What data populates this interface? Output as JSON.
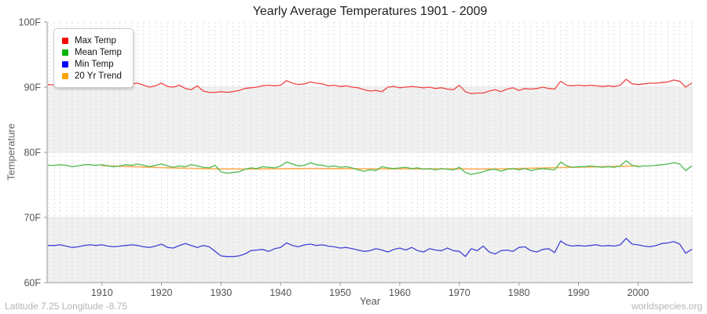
{
  "footer": {
    "left": "Latitude 7.25 Longitude -8.75",
    "right": "worldspecies.org"
  },
  "chart_data": {
    "type": "line",
    "title": "Yearly Average Temperatures 1901 - 2009",
    "xlabel": "Year",
    "ylabel": "Temperature",
    "xlim": [
      1901,
      2009
    ],
    "ylim": [
      60,
      100
    ],
    "y_unit": "F",
    "y_ticks": [
      100,
      90,
      80,
      70,
      60
    ],
    "x_ticks": [
      1910,
      1920,
      1930,
      1940,
      1950,
      1960,
      1970,
      1980,
      1990,
      2000
    ],
    "grid": "vertical-dashed-per-year, horizontal alternating 10F bands",
    "legend_position": "top-left",
    "band_colors": [
      "#f0f0f0",
      "#ffffff"
    ],
    "axis_color": "#999999",
    "tick_label_color": "#555555",
    "series": [
      {
        "name": "Max Temp",
        "color": "#ef4545",
        "swatch": "#ff0000",
        "start_year": 1901,
        "values": [
          90.4,
          90.3,
          90.5,
          90.6,
          90.1,
          90.0,
          90.3,
          90.5,
          90.4,
          90.5,
          90.3,
          90.1,
          90.3,
          90.2,
          90.5,
          90.6,
          90.3,
          90.0,
          90.2,
          90.6,
          90.1,
          90.0,
          90.3,
          89.8,
          89.6,
          90.2,
          89.4,
          89.2,
          89.2,
          89.3,
          89.2,
          89.3,
          89.5,
          89.8,
          89.9,
          90.0,
          90.2,
          90.3,
          90.2,
          90.3,
          91.0,
          90.6,
          90.4,
          90.5,
          90.8,
          90.6,
          90.5,
          90.2,
          90.3,
          90.1,
          90.2,
          90.0,
          89.9,
          89.6,
          89.4,
          89.5,
          89.3,
          90.0,
          90.1,
          89.9,
          90.0,
          90.1,
          90.0,
          89.9,
          90.0,
          89.8,
          89.9,
          89.7,
          89.6,
          90.3,
          89.3,
          89.0,
          89.1,
          89.1,
          89.4,
          89.6,
          89.3,
          89.7,
          89.9,
          89.5,
          89.8,
          89.7,
          89.8,
          90.0,
          89.8,
          89.7,
          90.9,
          90.3,
          90.2,
          90.3,
          90.2,
          90.3,
          90.2,
          90.1,
          90.2,
          90.1,
          90.3,
          91.2,
          90.5,
          90.4,
          90.5,
          90.6,
          90.6,
          90.7,
          90.8,
          91.1,
          90.9,
          90.0,
          90.6
        ]
      },
      {
        "name": "Mean Temp",
        "color": "#4dba4d",
        "swatch": "#00b200",
        "start_year": 1901,
        "values": [
          78.0,
          78.0,
          78.1,
          78.0,
          77.8,
          77.9,
          78.1,
          78.1,
          78.0,
          78.1,
          77.9,
          77.8,
          77.9,
          78.1,
          78.0,
          78.2,
          78.0,
          77.8,
          78.0,
          78.2,
          77.9,
          77.7,
          77.9,
          77.8,
          78.1,
          77.9,
          77.7,
          77.6,
          78.0,
          77.0,
          76.8,
          76.9,
          77.0,
          77.4,
          77.6,
          77.5,
          77.8,
          77.7,
          77.6,
          77.9,
          78.5,
          78.2,
          77.9,
          78.0,
          78.4,
          78.1,
          78.0,
          77.8,
          77.9,
          77.7,
          77.8,
          77.6,
          77.3,
          77.1,
          77.3,
          77.2,
          77.8,
          77.6,
          77.5,
          77.6,
          77.7,
          77.5,
          77.6,
          77.4,
          77.5,
          77.3,
          77.5,
          77.4,
          77.3,
          77.7,
          76.9,
          76.6,
          76.8,
          77.0,
          77.3,
          77.4,
          77.1,
          77.4,
          77.5,
          77.3,
          77.5,
          77.2,
          77.4,
          77.5,
          77.4,
          77.3,
          78.5,
          77.9,
          77.7,
          77.8,
          77.8,
          77.9,
          77.8,
          77.7,
          77.8,
          77.7,
          77.9,
          78.7,
          78.0,
          77.8,
          77.9,
          77.9,
          78.0,
          78.1,
          78.2,
          78.4,
          78.2,
          77.2,
          77.9
        ]
      },
      {
        "name": "Min Temp",
        "color": "#4343d6",
        "swatch": "#0000ff",
        "start_year": 1901,
        "values": [
          65.7,
          65.7,
          65.8,
          65.6,
          65.4,
          65.5,
          65.7,
          65.8,
          65.7,
          65.8,
          65.6,
          65.5,
          65.6,
          65.7,
          65.8,
          65.7,
          65.5,
          65.4,
          65.6,
          65.9,
          65.4,
          65.3,
          65.7,
          66.0,
          65.7,
          65.4,
          65.7,
          65.5,
          64.8,
          64.1,
          64.0,
          64.0,
          64.1,
          64.4,
          64.9,
          65.0,
          65.1,
          64.8,
          65.2,
          65.4,
          66.1,
          65.7,
          65.5,
          65.8,
          65.9,
          65.7,
          65.8,
          65.6,
          65.5,
          65.3,
          65.4,
          65.2,
          65.0,
          64.8,
          64.9,
          65.2,
          65.0,
          64.7,
          65.1,
          65.3,
          65.0,
          65.4,
          64.9,
          64.7,
          65.2,
          65.0,
          64.9,
          65.3,
          64.9,
          64.8,
          64.0,
          65.2,
          64.9,
          65.6,
          64.7,
          64.4,
          64.9,
          65.0,
          64.8,
          65.4,
          65.5,
          64.9,
          64.7,
          65.1,
          65.2,
          64.6,
          66.4,
          65.8,
          65.6,
          65.7,
          65.6,
          65.7,
          65.8,
          65.6,
          65.7,
          65.6,
          65.8,
          66.8,
          65.9,
          65.8,
          65.6,
          65.5,
          65.7,
          66.0,
          66.1,
          66.3,
          65.9,
          64.5,
          65.1
        ]
      },
      {
        "name": "20 Yr Trend",
        "color": "#ffad55",
        "swatch": "#ffa500",
        "start_year": 1910,
        "values": [
          77.95,
          77.92,
          77.89,
          77.86,
          77.83,
          77.8,
          77.77,
          77.74,
          77.71,
          77.68,
          77.65,
          77.62,
          77.59,
          77.57,
          77.55,
          77.53,
          77.51,
          77.49,
          77.47,
          77.46,
          77.45,
          77.44,
          77.44,
          77.43,
          77.43,
          77.43,
          77.44,
          77.45,
          77.46,
          77.47,
          77.48,
          77.49,
          77.5,
          77.5,
          77.51,
          77.51,
          77.51,
          77.51,
          77.5,
          77.5,
          77.5,
          77.49,
          77.49,
          77.48,
          77.48,
          77.47,
          77.47,
          77.46,
          77.46,
          77.46,
          77.46,
          77.46,
          77.46,
          77.45,
          77.45,
          77.45,
          77.45,
          77.45,
          77.44,
          77.44,
          77.44,
          77.44,
          77.43,
          77.43,
          77.43,
          77.44,
          77.45,
          77.46,
          77.47,
          77.49,
          77.51,
          77.53,
          77.55,
          77.57,
          77.59,
          77.61,
          77.63,
          77.65,
          77.67,
          77.69,
          77.71,
          77.73,
          77.75,
          77.77,
          77.79,
          77.81,
          77.83,
          77.85,
          77.87,
          77.88,
          77.9
        ]
      }
    ]
  }
}
